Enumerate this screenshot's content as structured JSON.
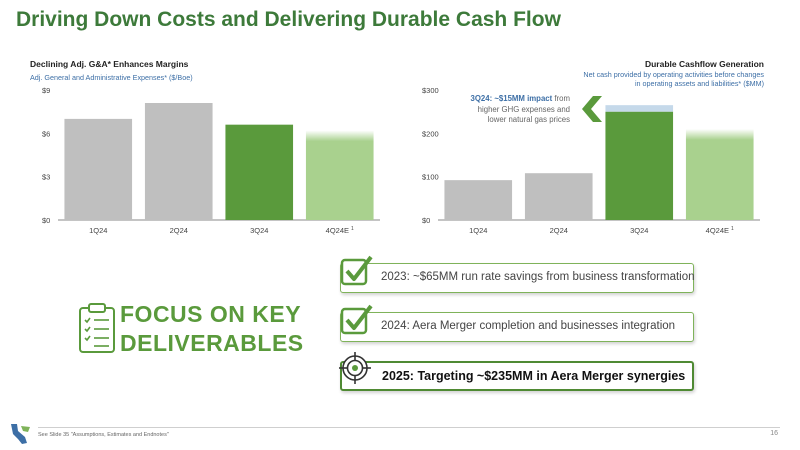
{
  "slide": {
    "title": "Driving Down Costs and Delivering Durable Cash Flow",
    "footer_note": "See Slide 35 \"Assumptions, Estimates and Endnotes\"",
    "page_number": "16"
  },
  "left_chart": {
    "title": "Declining Adj. G&A* Enhances Margins",
    "subtitle": "Adj. General and Administrative Expenses* ($/Boe)"
  },
  "right_chart": {
    "title": "Durable Cashflow Generation",
    "subtitle_line1": "Net cash provided by operating activities before changes",
    "subtitle_line2": "in operating assets and liabilities* ($MM)",
    "annotation_bold": "3Q24: ~$15MM impact",
    "annotation_rest1": "from",
    "annotation_rest2": "higher GHG expenses and",
    "annotation_rest3": "lower natural gas prices"
  },
  "chart_data": [
    {
      "type": "bar",
      "title": "Declining Adj. G&A* Enhances Margins",
      "ylabel": "Adj. General and Administrative Expenses* ($/Boe)",
      "categories": [
        "1Q24",
        "2Q24",
        "3Q24",
        "4Q24E"
      ],
      "category_superscripts": [
        "",
        "",
        "",
        "1"
      ],
      "values": [
        7.0,
        8.1,
        6.6,
        6.2
      ],
      "ylim": [
        0,
        9
      ],
      "yticks": [
        0,
        3,
        6,
        9
      ],
      "ytick_labels": [
        "$0",
        "$3",
        "$6",
        "$9"
      ],
      "colors": [
        "#bfbfbf",
        "#bfbfbf",
        "#5a9a3c",
        "#a9d18e"
      ],
      "grid": false
    },
    {
      "type": "bar",
      "title": "Durable Cashflow Generation",
      "ylabel": "Net cash provided by operating activities before changes in operating assets and liabilities* ($MM)",
      "categories": [
        "1Q24",
        "2Q24",
        "3Q24",
        "4Q24E"
      ],
      "category_superscripts": [
        "",
        "",
        "",
        "1"
      ],
      "values": [
        92,
        108,
        250,
        210
      ],
      "stacked_extra": [
        0,
        0,
        15,
        0
      ],
      "ylim": [
        0,
        300
      ],
      "yticks": [
        0,
        100,
        200,
        300
      ],
      "ytick_labels": [
        "$0",
        "$100",
        "$200",
        "$300"
      ],
      "colors": [
        "#bfbfbf",
        "#bfbfbf",
        "#5a9a3c",
        "#a9d18e"
      ],
      "extra_color": "#c5d9ea",
      "grid": false
    }
  ],
  "focus": {
    "line1": "FOCUS ON KEY",
    "line2": "DELIVERABLES"
  },
  "deliverables": [
    {
      "text": "2023: ~$65MM run rate savings from business transformation",
      "icon": "checkmark-icon"
    },
    {
      "text": "2024: Aera Merger completion and businesses integration",
      "icon": "checkmark-icon"
    },
    {
      "text": "2025: Targeting ~$235MM in Aera Merger synergies",
      "icon": "target-icon"
    }
  ],
  "colors": {
    "brand_green": "#3d7a3a",
    "bar_grey": "#bfbfbf",
    "bar_green": "#5a9a3c",
    "bar_light_green": "#a9d18e",
    "accent_blue": "#3d6fa6"
  }
}
